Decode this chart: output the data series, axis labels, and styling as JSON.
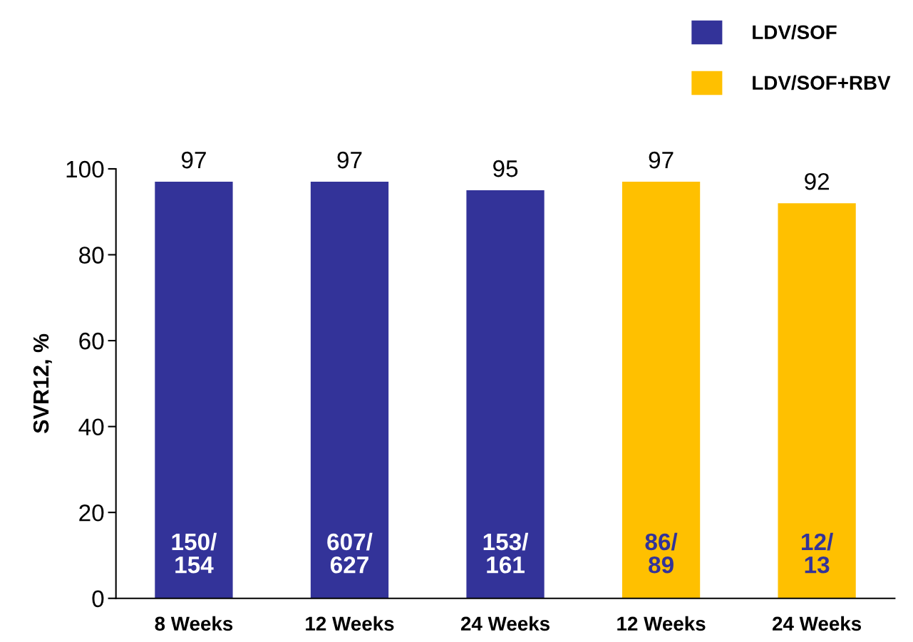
{
  "chart_data": {
    "type": "bar",
    "ylabel": "SVR12, %",
    "categories": [
      "8 Weeks",
      "12 Weeks",
      "24 Weeks",
      "12 Weeks",
      "24 Weeks"
    ],
    "series": [
      {
        "name": "LDV/SOF",
        "color": "#333399",
        "values": [
          97,
          97,
          95,
          null,
          null
        ]
      },
      {
        "name": "LDV/SOF+RBV",
        "color": "#ffc000",
        "values": [
          null,
          null,
          null,
          97,
          92
        ]
      }
    ],
    "ylim": [
      0,
      100
    ],
    "yticks": [
      0,
      20,
      40,
      60,
      80,
      100
    ],
    "data_labels": true,
    "grid": false,
    "legend": "top right",
    "annotations": [
      "150/\n154",
      "607/\n627",
      "153/\n161",
      "86/\n89",
      "12/\n13"
    ]
  }
}
